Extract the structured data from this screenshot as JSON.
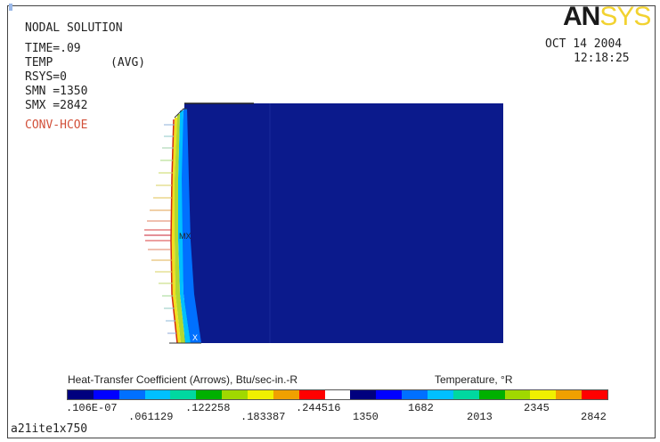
{
  "header": {
    "title": "NODAL SOLUTION",
    "time": "TIME=.09",
    "temp": "TEMP",
    "avg": "(AVG)",
    "rsys": "RSYS=0",
    "smn": "SMN =1350",
    "smx": "SMX =2842",
    "overlay": "CONV-HCOE"
  },
  "datetime": {
    "date": "OCT 14 2004",
    "time": "12:18:25"
  },
  "logo": {
    "main": "AN",
    "sub": "SYS"
  },
  "legend": {
    "hcoe_title": "Heat-Transfer Coefficient (Arrows), Btu/sec-in.-R",
    "temp_title": "Temperature, °R",
    "hcoe_ticks": [
      ".106E-07",
      ".061129",
      ".122258",
      ".183387",
      ".244516"
    ],
    "temp_ticks": [
      "1350",
      "1682",
      "2013",
      "2345",
      "2842"
    ],
    "colors": [
      "#00007e",
      "#0000ff",
      "#0070ff",
      "#00c0ff",
      "#00d8a0",
      "#00b000",
      "#a0d800",
      "#f0f000",
      "#f0a000",
      "#ff0000",
      "#ffffff",
      "#00007e",
      "#0000ff",
      "#0070ff",
      "#00c0ff",
      "#00d8a0",
      "#00b000",
      "#a0d800",
      "#f0f000",
      "#f0a000",
      "#ff0000"
    ]
  },
  "footer": {
    "filename": "a21ite1x750"
  }
}
